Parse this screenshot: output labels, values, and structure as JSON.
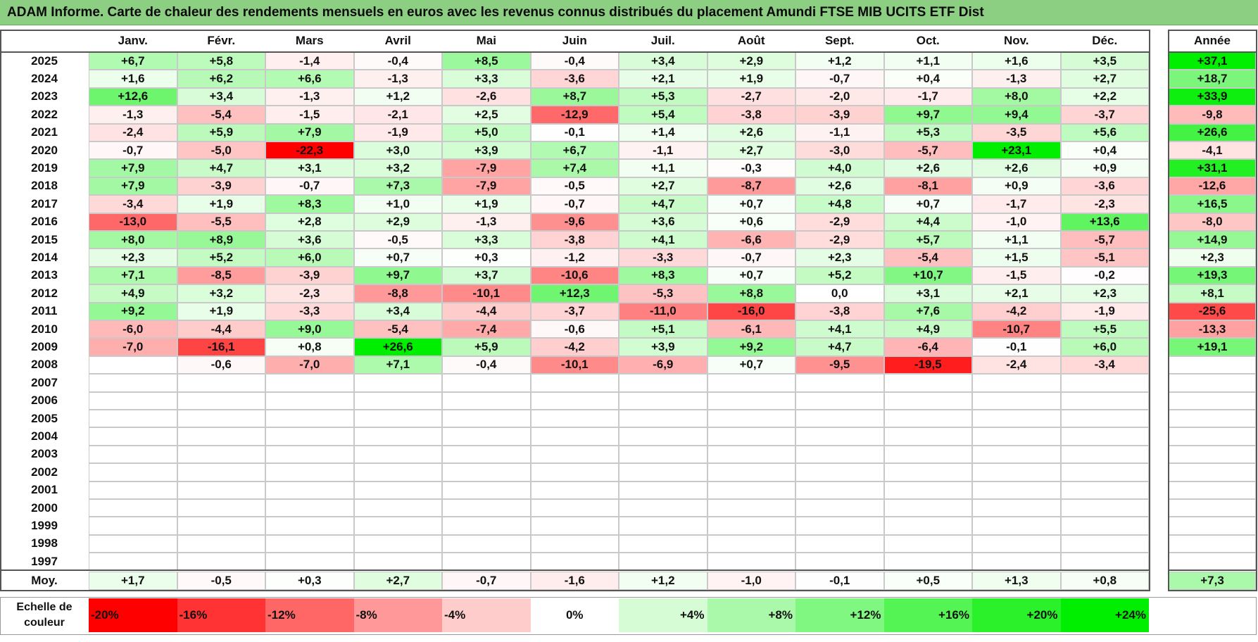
{
  "title": "ADAM Informe. Carte de chaleur des rendements mensuels en euros avec les revenus connus distribués du placement Amundi FTSE MIB UCITS ETF Dist",
  "chart_data": {
    "type": "heatmap",
    "months": [
      "Janv.",
      "Févr.",
      "Mars",
      "Avril",
      "Mai",
      "Juin",
      "Juil.",
      "Août",
      "Sept.",
      "Oct.",
      "Nov.",
      "Déc."
    ],
    "year_header": "Année",
    "avg_label": "Moy.",
    "rows": [
      {
        "year": "2025",
        "values": [
          "+6,7",
          "+5,8",
          "-1,4",
          "-0,4",
          "+8,5",
          "-0,4",
          "+3,4",
          "+2,9",
          "+1,2",
          "+1,1",
          "+1,6",
          "+3,5"
        ],
        "annual": "+37,1"
      },
      {
        "year": "2024",
        "values": [
          "+1,6",
          "+6,2",
          "+6,6",
          "-1,3",
          "+3,3",
          "-3,6",
          "+2,1",
          "+1,9",
          "-0,7",
          "+0,4",
          "-1,3",
          "+2,7"
        ],
        "annual": "+18,7"
      },
      {
        "year": "2023",
        "values": [
          "+12,6",
          "+3,4",
          "-1,3",
          "+1,2",
          "-2,6",
          "+8,7",
          "+5,3",
          "-2,7",
          "-2,0",
          "-1,7",
          "+8,0",
          "+2,2"
        ],
        "annual": "+33,9"
      },
      {
        "year": "2022",
        "values": [
          "-1,3",
          "-5,4",
          "-1,5",
          "-2,1",
          "+2,5",
          "-12,9",
          "+5,4",
          "-3,8",
          "-3,9",
          "+9,7",
          "+9,4",
          "-3,7"
        ],
        "annual": "-9,8"
      },
      {
        "year": "2021",
        "values": [
          "-2,4",
          "+5,9",
          "+7,9",
          "-1,9",
          "+5,0",
          "-0,1",
          "+1,4",
          "+2,6",
          "-1,1",
          "+5,3",
          "-3,5",
          "+5,6"
        ],
        "annual": "+26,6"
      },
      {
        "year": "2020",
        "values": [
          "-0,7",
          "-5,0",
          "-22,3",
          "+3,0",
          "+3,9",
          "+6,7",
          "-1,1",
          "+2,7",
          "-3,0",
          "-5,7",
          "+23,1",
          "+0,4"
        ],
        "annual": "-4,1"
      },
      {
        "year": "2019",
        "values": [
          "+7,9",
          "+4,7",
          "+3,1",
          "+3,2",
          "-7,9",
          "+7,4",
          "+1,1",
          "-0,3",
          "+4,0",
          "+2,6",
          "+2,6",
          "+0,9"
        ],
        "annual": "+31,1"
      },
      {
        "year": "2018",
        "values": [
          "+7,9",
          "-3,9",
          "-0,7",
          "+7,3",
          "-7,9",
          "-0,5",
          "+2,7",
          "-8,7",
          "+2,6",
          "-8,1",
          "+0,9",
          "-3,6"
        ],
        "annual": "-12,6"
      },
      {
        "year": "2017",
        "values": [
          "-3,4",
          "+1,9",
          "+8,3",
          "+1,0",
          "+1,9",
          "-0,7",
          "+4,7",
          "+0,7",
          "+4,8",
          "+0,7",
          "-1,7",
          "-2,3"
        ],
        "annual": "+16,5"
      },
      {
        "year": "2016",
        "values": [
          "-13,0",
          "-5,5",
          "+2,8",
          "+2,9",
          "-1,3",
          "-9,6",
          "+3,6",
          "+0,6",
          "-2,9",
          "+4,4",
          "-1,0",
          "+13,6"
        ],
        "annual": "-8,0"
      },
      {
        "year": "2015",
        "values": [
          "+8,0",
          "+8,9",
          "+3,6",
          "-0,5",
          "+3,3",
          "-3,8",
          "+4,1",
          "-6,6",
          "-2,9",
          "+5,7",
          "+1,1",
          "-5,7"
        ],
        "annual": "+14,9"
      },
      {
        "year": "2014",
        "values": [
          "+2,3",
          "+5,2",
          "+6,0",
          "+0,7",
          "+0,3",
          "-1,2",
          "-3,3",
          "-0,7",
          "+2,3",
          "-5,4",
          "+1,5",
          "-5,1"
        ],
        "annual": "+2,3"
      },
      {
        "year": "2013",
        "values": [
          "+7,1",
          "-8,5",
          "-3,9",
          "+9,7",
          "+3,7",
          "-10,6",
          "+8,3",
          "+0,7",
          "+5,2",
          "+10,7",
          "-1,5",
          "-0,2"
        ],
        "annual": "+19,3"
      },
      {
        "year": "2012",
        "values": [
          "+4,9",
          "+3,2",
          "-2,3",
          "-8,8",
          "-10,1",
          "+12,3",
          "-5,3",
          "+8,8",
          "0,0",
          "+3,1",
          "+2,1",
          "+2,3"
        ],
        "annual": "+8,1"
      },
      {
        "year": "2011",
        "values": [
          "+9,2",
          "+1,9",
          "-3,3",
          "+3,4",
          "-4,4",
          "-3,7",
          "-11,0",
          "-16,0",
          "-3,8",
          "+7,6",
          "-4,2",
          "-1,9"
        ],
        "annual": "-25,6"
      },
      {
        "year": "2010",
        "values": [
          "-6,0",
          "-4,4",
          "+9,0",
          "-5,4",
          "-7,4",
          "-0,6",
          "+5,1",
          "-6,1",
          "+4,1",
          "+4,9",
          "-10,7",
          "+5,5"
        ],
        "annual": "-13,3"
      },
      {
        "year": "2009",
        "values": [
          "-7,0",
          "-16,1",
          "+0,8",
          "+26,6",
          "+5,9",
          "-4,2",
          "+3,9",
          "+9,2",
          "+4,7",
          "-6,4",
          "-0,1",
          "+6,0"
        ],
        "annual": "+19,1"
      },
      {
        "year": "2008",
        "values": [
          "",
          "-0,6",
          "-7,0",
          "+7,1",
          "-0,4",
          "-10,1",
          "-6,9",
          "+0,7",
          "-9,5",
          "-19,5",
          "-2,4",
          "-3,4"
        ],
        "annual": ""
      },
      {
        "year": "2007",
        "values": [
          "",
          "",
          "",
          "",
          "",
          "",
          "",
          "",
          "",
          "",
          "",
          ""
        ],
        "annual": ""
      },
      {
        "year": "2006",
        "values": [
          "",
          "",
          "",
          "",
          "",
          "",
          "",
          "",
          "",
          "",
          "",
          ""
        ],
        "annual": ""
      },
      {
        "year": "2005",
        "values": [
          "",
          "",
          "",
          "",
          "",
          "",
          "",
          "",
          "",
          "",
          "",
          ""
        ],
        "annual": ""
      },
      {
        "year": "2004",
        "values": [
          "",
          "",
          "",
          "",
          "",
          "",
          "",
          "",
          "",
          "",
          "",
          ""
        ],
        "annual": ""
      },
      {
        "year": "2003",
        "values": [
          "",
          "",
          "",
          "",
          "",
          "",
          "",
          "",
          "",
          "",
          "",
          ""
        ],
        "annual": ""
      },
      {
        "year": "2002",
        "values": [
          "",
          "",
          "",
          "",
          "",
          "",
          "",
          "",
          "",
          "",
          "",
          ""
        ],
        "annual": ""
      },
      {
        "year": "2001",
        "values": [
          "",
          "",
          "",
          "",
          "",
          "",
          "",
          "",
          "",
          "",
          "",
          ""
        ],
        "annual": ""
      },
      {
        "year": "2000",
        "values": [
          "",
          "",
          "",
          "",
          "",
          "",
          "",
          "",
          "",
          "",
          "",
          ""
        ],
        "annual": ""
      },
      {
        "year": "1999",
        "values": [
          "",
          "",
          "",
          "",
          "",
          "",
          "",
          "",
          "",
          "",
          "",
          ""
        ],
        "annual": ""
      },
      {
        "year": "1998",
        "values": [
          "",
          "",
          "",
          "",
          "",
          "",
          "",
          "",
          "",
          "",
          "",
          ""
        ],
        "annual": ""
      },
      {
        "year": "1997",
        "values": [
          "",
          "",
          "",
          "",
          "",
          "",
          "",
          "",
          "",
          "",
          "",
          ""
        ],
        "annual": ""
      }
    ],
    "averages": [
      "+1,7",
      "-0,5",
      "+0,3",
      "+2,7",
      "-0,7",
      "-1,6",
      "+1,2",
      "-1,0",
      "-0,1",
      "+0,5",
      "+1,3",
      "+0,8"
    ],
    "average_annual": "+7,3",
    "legend": {
      "label": "Echelle de couleur",
      "steps": [
        "-20%",
        "-16%",
        "-12%",
        "-8%",
        "-4%",
        "0%",
        "+4%",
        "+8%",
        "+12%",
        "+16%",
        "+20%",
        "+24%"
      ]
    },
    "colors": {
      "negative_max": "#ff0000",
      "positive_max": "#00ee00",
      "neutral": "#ffffff",
      "title_bar": "#8ccf82"
    }
  }
}
